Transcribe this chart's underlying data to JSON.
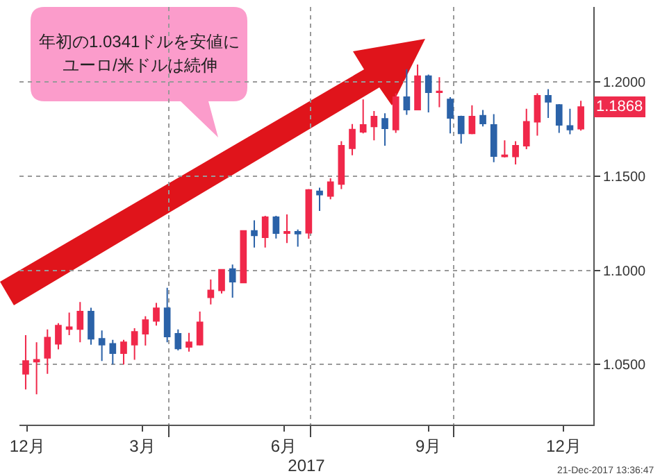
{
  "chart_data": {
    "type": "candlestick",
    "x": [
      "2016-12-30",
      "2017-01-06",
      "2017-01-13",
      "2017-01-20",
      "2017-01-27",
      "2017-02-03",
      "2017-02-10",
      "2017-02-17",
      "2017-02-24",
      "2017-03-03",
      "2017-03-10",
      "2017-03-17",
      "2017-03-24",
      "2017-03-31",
      "2017-04-07",
      "2017-04-14",
      "2017-04-21",
      "2017-04-28",
      "2017-05-05",
      "2017-05-12",
      "2017-05-19",
      "2017-05-26",
      "2017-06-02",
      "2017-06-09",
      "2017-06-16",
      "2017-06-23",
      "2017-06-30",
      "2017-07-07",
      "2017-07-14",
      "2017-07-21",
      "2017-07-28",
      "2017-08-04",
      "2017-08-11",
      "2017-08-18",
      "2017-08-25",
      "2017-09-01",
      "2017-09-08",
      "2017-09-15",
      "2017-09-22",
      "2017-09-29",
      "2017-10-06",
      "2017-10-13",
      "2017-10-20",
      "2017-10-27",
      "2017-11-03",
      "2017-11-10",
      "2017-11-17",
      "2017-11-24",
      "2017-12-01",
      "2017-12-08",
      "2017-12-15",
      "2017-12-22"
    ],
    "ohlc": [
      [
        1.045,
        1.0656,
        1.0367,
        1.0518
      ],
      [
        1.0515,
        1.0618,
        1.0341,
        1.0525
      ],
      [
        1.0535,
        1.0686,
        1.045,
        1.0643
      ],
      [
        1.061,
        1.0719,
        1.058,
        1.0706
      ],
      [
        1.0688,
        1.0776,
        1.0656,
        1.0698
      ],
      [
        1.0688,
        1.0832,
        1.0618,
        1.0781
      ],
      [
        1.0781,
        1.0801,
        1.0605,
        1.0636
      ],
      [
        1.0636,
        1.0681,
        1.0518,
        1.0605
      ],
      [
        1.061,
        1.0631,
        1.05,
        1.056
      ],
      [
        1.056,
        1.0631,
        1.05,
        1.0618
      ],
      [
        1.0605,
        1.0693,
        1.0525,
        1.0673
      ],
      [
        1.0663,
        1.0756,
        1.06,
        1.0736
      ],
      [
        1.0731,
        1.0827,
        1.0706,
        1.0799
      ],
      [
        1.0799,
        1.0907,
        1.0618,
        1.0648
      ],
      [
        1.0663,
        1.0686,
        1.0575,
        1.0585
      ],
      [
        1.0593,
        1.0668,
        1.0568,
        1.0618
      ],
      [
        1.0605,
        1.0781,
        1.06,
        1.0724
      ],
      [
        1.0857,
        1.0952,
        1.0819,
        1.0894
      ],
      [
        1.0894,
        1.1003,
        1.0877,
        1.1003
      ],
      [
        1.1007,
        1.1031,
        1.0855,
        1.094
      ],
      [
        1.0935,
        1.121,
        1.0935,
        1.121
      ],
      [
        1.121,
        1.1266,
        1.1121,
        1.1186
      ],
      [
        1.1176,
        1.129,
        1.1121,
        1.1283
      ],
      [
        1.1283,
        1.129,
        1.1169,
        1.1198
      ],
      [
        1.1198,
        1.1297,
        1.1145,
        1.1205
      ],
      [
        1.1205,
        1.1217,
        1.1126,
        1.1195
      ],
      [
        1.12,
        1.1432,
        1.1168,
        1.1427
      ],
      [
        1.142,
        1.1439,
        1.1316,
        1.1402
      ],
      [
        1.1395,
        1.1489,
        1.1378,
        1.1469
      ],
      [
        1.1459,
        1.1686,
        1.1432,
        1.1662
      ],
      [
        1.1649,
        1.1778,
        1.1612,
        1.1748
      ],
      [
        1.1736,
        1.1909,
        1.1728,
        1.1773
      ],
      [
        1.1765,
        1.1847,
        1.1691,
        1.1817
      ],
      [
        1.1805,
        1.1835,
        1.1662,
        1.1755
      ],
      [
        1.1748,
        1.1941,
        1.1731,
        1.1921
      ],
      [
        1.1921,
        1.2069,
        1.1827,
        1.1854
      ],
      [
        1.1854,
        1.2094,
        1.1852,
        1.2032
      ],
      [
        1.2032,
        1.204,
        1.1839,
        1.1946
      ],
      [
        1.1946,
        1.2027,
        1.1867,
        1.1951
      ],
      [
        1.1909,
        1.1921,
        1.1728,
        1.181
      ],
      [
        1.1817,
        1.1822,
        1.1674,
        1.1728
      ],
      [
        1.1728,
        1.1877,
        1.1723,
        1.1817
      ],
      [
        1.1822,
        1.1852,
        1.1765,
        1.178
      ],
      [
        1.1773,
        1.183,
        1.1575,
        1.1607
      ],
      [
        1.1605,
        1.1691,
        1.16,
        1.1612
      ],
      [
        1.1605,
        1.1686,
        1.1563,
        1.1662
      ],
      [
        1.1662,
        1.1859,
        1.1644,
        1.179
      ],
      [
        1.179,
        1.1941,
        1.1716,
        1.1928
      ],
      [
        1.1928,
        1.1963,
        1.181,
        1.1896
      ],
      [
        1.1879,
        1.1884,
        1.1731,
        1.1773
      ],
      [
        1.1768,
        1.1859,
        1.1723,
        1.1748
      ],
      [
        1.1753,
        1.1901,
        1.1743,
        1.1868
      ]
    ],
    "colors": [
      "#f0284a",
      "#f0284a",
      "#f0284a",
      "#f0284a",
      "#f0284a",
      "#f0284a",
      "#2b62a8",
      "#2b62a8",
      "#2b62a8",
      "#f0284a",
      "#f0284a",
      "#f0284a",
      "#f0284a",
      "#2b62a8",
      "#2b62a8",
      "#f0284a",
      "#f0284a",
      "#f0284a",
      "#f0284a",
      "#2b62a8",
      "#f0284a",
      "#2b62a8",
      "#f0284a",
      "#2b62a8",
      "#f0284a",
      "#2b62a8",
      "#f0284a",
      "#2b62a8",
      "#f0284a",
      "#f0284a",
      "#f0284a",
      "#f0284a",
      "#f0284a",
      "#2b62a8",
      "#f0284a",
      "#2b62a8",
      "#f0284a",
      "#2b62a8",
      "#f0284a",
      "#2b62a8",
      "#2b62a8",
      "#f0284a",
      "#2b62a8",
      "#2b62a8",
      "#f0284a",
      "#f0284a",
      "#f0284a",
      "#f0284a",
      "#2b62a8",
      "#2b62a8",
      "#2b62a8",
      "#f0284a"
    ],
    "xlim": [
      "2016-12-26",
      "2017-12-30"
    ],
    "xticks": [
      {
        "value": "2016-12-31",
        "label": "12月"
      },
      {
        "value": "2017-03-15",
        "label": "3月"
      },
      {
        "value": "2017-04-01",
        "label": null
      },
      {
        "value": "2017-06-14",
        "label": "6月"
      },
      {
        "value": "2017-07-01",
        "label": null
      },
      {
        "value": "2017-09-15",
        "label": "9月"
      },
      {
        "value": "2017-10-01",
        "label": null
      },
      {
        "value": "2017-12-11",
        "label": "12月"
      }
    ],
    "ylim": [
      1.018,
      1.24
    ],
    "yticks": [
      {
        "value": 1.05,
        "label": "1.0500"
      },
      {
        "value": 1.1,
        "label": "1.1000"
      },
      {
        "value": 1.15,
        "label": "1.1500"
      },
      {
        "value": 1.2,
        "label": "1.2000"
      }
    ],
    "xlabel": "2017",
    "annotations": [
      "年初の1.0341ドルを安値に",
      "ユーロ/米ドルは続伸",
      "21-Dec-2017 13:36:47",
      {
        "text": "1.1868",
        "x": "2017-12-22",
        "y": 1.1868
      }
    ],
    "grid": true
  }
}
